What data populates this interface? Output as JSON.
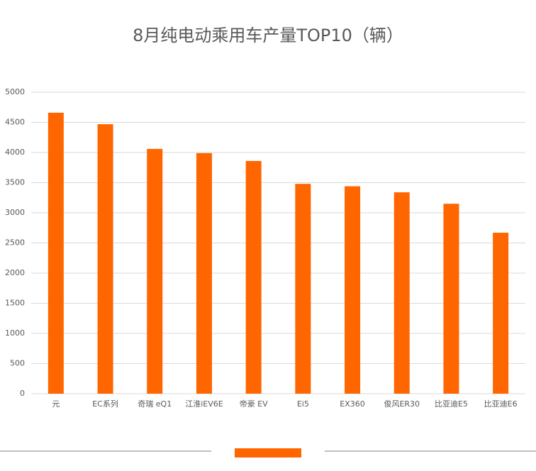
{
  "chart_data": {
    "type": "bar",
    "title": "8月纯电动乘用车产量TOP10（辆）",
    "categories": [
      "元",
      "EC系列",
      "奇瑞 eQ1",
      "江淮iEV6E",
      "帝豪 EV",
      "Ei5",
      "EX360",
      "俊风ER30",
      "比亚迪E5",
      "比亚迪E6"
    ],
    "values": [
      4660,
      4470,
      4060,
      3990,
      3860,
      3480,
      3440,
      3340,
      3150,
      2670
    ],
    "color": "#ff6600",
    "ylim": [
      0,
      5000
    ],
    "yticks": [
      0,
      500,
      1000,
      1500,
      2000,
      2500,
      3000,
      3500,
      4000,
      4500,
      5000
    ],
    "grid": true
  }
}
